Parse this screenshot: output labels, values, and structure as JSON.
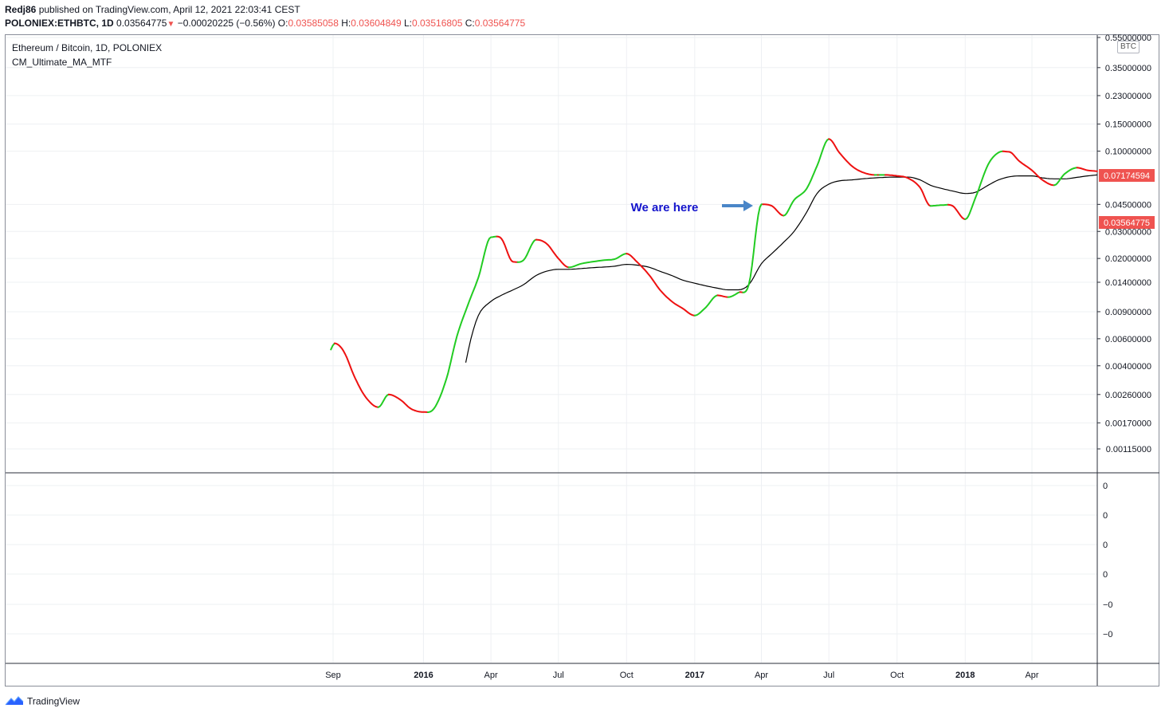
{
  "header": {
    "publisher": "Redj86",
    "published_text": "published on TradingView.com, April 12, 2021 22:03:41 CEST",
    "symbol": "POLONIEX:ETHBTC, 1D",
    "last": "0.03564775",
    "change_icon": "down-triangle-icon",
    "change": "−0.00020225 (−0.56%)",
    "o_label": "O:",
    "o_value": "0.03585058",
    "h_label": "H:",
    "h_value": "0.03604849",
    "l_label": "L:",
    "l_value": "0.03516805",
    "c_label": "C:",
    "c_value": "0.03564775"
  },
  "legend": {
    "series_title": "Ethereum / Bitcoin, 1D, POLONIEX",
    "indicator_title": "CM_Ultimate_MA_MTF"
  },
  "price_axis": {
    "unit": "BTC",
    "ticks": [
      "0.55000000",
      "0.35000000",
      "0.23000000",
      "0.15000000",
      "0.10000000",
      "0.04500000",
      "0.03000000",
      "0.02000000",
      "0.01400000",
      "0.00900000",
      "0.00600000",
      "0.00400000",
      "0.00260000",
      "0.00170000",
      "0.00115000"
    ],
    "badge_ma": "0.07174594",
    "badge_price": "0.03564775"
  },
  "indicator_axis": {
    "ticks": [
      "0",
      "0",
      "0",
      "0",
      "−0",
      "−0"
    ]
  },
  "time_axis": {
    "labels": [
      "Sep",
      "2016",
      "Apr",
      "Jul",
      "Oct",
      "2017",
      "Apr",
      "Jul",
      "Oct",
      "2018",
      "Apr"
    ],
    "bold": [
      false,
      true,
      false,
      false,
      false,
      true,
      false,
      false,
      false,
      true,
      false
    ]
  },
  "annotation": {
    "text": "We are here"
  },
  "footer": {
    "brand": "TradingView"
  },
  "colors": {
    "up": "#22cc22",
    "down": "#ee1111",
    "ma": "#000000",
    "badge": "#ef5350",
    "annotation_text": "#1414cc",
    "arrow": "#4a86c8"
  },
  "chart_data": {
    "type": "line",
    "title": "Ethereum / Bitcoin, 1D, POLONIEX",
    "y_scale": "log",
    "ylim": [
      0.00092,
      0.58
    ],
    "y_ticks": [
      0.55,
      0.35,
      0.23,
      0.15,
      0.1,
      0.045,
      0.03,
      0.02,
      0.014,
      0.009,
      0.006,
      0.004,
      0.0026,
      0.0017,
      0.00115
    ],
    "x_ticks": [
      "2015-09-01",
      "2016-01-01",
      "2016-04-01",
      "2016-07-01",
      "2016-10-01",
      "2017-01-01",
      "2017-04-01",
      "2017-07-01",
      "2017-10-01",
      "2018-01-01",
      "2018-04-01"
    ],
    "x_tick_labels": [
      "Sep",
      "2016",
      "Apr",
      "Jul",
      "Oct",
      "2017",
      "Apr",
      "Jul",
      "Oct",
      "2018",
      "Apr"
    ],
    "grid": true,
    "series": [
      {
        "name": "CM_Ultimate_MA_MTF",
        "role": "price-ma",
        "x": [
          "2015-08-29",
          "2015-09-03",
          "2015-09-15",
          "2015-10-01",
          "2015-10-15",
          "2015-11-01",
          "2015-11-15",
          "2015-12-01",
          "2015-12-15",
          "2016-01-01",
          "2016-01-15",
          "2016-02-01",
          "2016-02-15",
          "2016-03-01",
          "2016-03-15",
          "2016-04-01",
          "2016-04-15",
          "2016-05-01",
          "2016-05-15",
          "2016-06-01",
          "2016-06-15",
          "2016-07-01",
          "2016-07-15",
          "2016-08-01",
          "2016-08-15",
          "2016-09-01",
          "2016-09-15",
          "2016-10-01",
          "2016-10-15",
          "2016-11-01",
          "2016-11-15",
          "2016-12-01",
          "2016-12-15",
          "2017-01-01",
          "2017-01-15",
          "2017-02-01",
          "2017-02-15",
          "2017-03-01",
          "2017-03-15",
          "2017-04-01",
          "2017-04-15",
          "2017-05-01",
          "2017-05-15",
          "2017-06-01",
          "2017-06-15",
          "2017-07-01",
          "2017-07-15",
          "2017-08-01",
          "2017-08-15",
          "2017-09-01",
          "2017-09-15",
          "2017-10-01",
          "2017-10-15",
          "2017-11-01",
          "2017-11-15",
          "2017-12-01",
          "2017-12-15",
          "2018-01-01",
          "2018-01-15",
          "2018-02-01",
          "2018-02-15",
          "2018-03-01",
          "2018-03-15",
          "2018-04-01",
          "2018-04-15",
          "2018-05-01",
          "2018-05-15",
          "2018-06-01",
          "2018-06-15",
          "2018-06-28"
        ],
        "values": [
          0.0051,
          0.0056,
          0.005,
          0.0033,
          0.0025,
          0.00215,
          0.0026,
          0.0024,
          0.0021,
          0.002,
          0.0021,
          0.0033,
          0.0062,
          0.01,
          0.015,
          0.0275,
          0.027,
          0.019,
          0.0195,
          0.0265,
          0.025,
          0.02,
          0.0175,
          0.0185,
          0.019,
          0.0195,
          0.0198,
          0.0215,
          0.019,
          0.0155,
          0.0125,
          0.0105,
          0.0095,
          0.0085,
          0.0095,
          0.0115,
          0.0112,
          0.012,
          0.0135,
          0.045,
          0.044,
          0.038,
          0.048,
          0.057,
          0.08,
          0.12,
          0.098,
          0.08,
          0.073,
          0.07,
          0.07,
          0.069,
          0.067,
          0.058,
          0.044,
          0.0445,
          0.044,
          0.036,
          0.05,
          0.082,
          0.098,
          0.099,
          0.086,
          0.075,
          0.065,
          0.06,
          0.071,
          0.078,
          0.075,
          0.074
        ]
      },
      {
        "name": "",
        "role": "ma",
        "x": [
          "2016-02-27",
          "2016-03-05",
          "2016-03-15",
          "2016-04-01",
          "2016-04-15",
          "2016-05-01",
          "2016-05-15",
          "2016-06-01",
          "2016-06-15",
          "2016-07-01",
          "2016-07-15",
          "2016-08-01",
          "2016-08-15",
          "2016-09-01",
          "2016-09-15",
          "2016-10-01",
          "2016-10-15",
          "2016-11-01",
          "2016-11-15",
          "2016-12-01",
          "2016-12-15",
          "2017-01-01",
          "2017-01-15",
          "2017-02-01",
          "2017-02-15",
          "2017-03-01",
          "2017-03-15",
          "2017-04-01",
          "2017-04-15",
          "2017-05-01",
          "2017-05-15",
          "2017-06-01",
          "2017-06-15",
          "2017-07-01",
          "2017-07-15",
          "2017-08-01",
          "2017-08-15",
          "2017-09-01",
          "2017-09-15",
          "2017-10-01",
          "2017-10-15",
          "2017-11-01",
          "2017-11-15",
          "2017-12-01",
          "2017-12-15",
          "2018-01-01",
          "2018-01-15",
          "2018-02-01",
          "2018-02-15",
          "2018-03-01",
          "2018-03-15",
          "2018-04-01",
          "2018-04-15",
          "2018-05-01",
          "2018-05-15",
          "2018-06-01",
          "2018-06-15",
          "2018-06-28"
        ],
        "values": [
          0.0042,
          0.006,
          0.0085,
          0.0105,
          0.0115,
          0.0125,
          0.0135,
          0.0155,
          0.0165,
          0.017,
          0.017,
          0.0172,
          0.0174,
          0.0176,
          0.0178,
          0.0183,
          0.0181,
          0.0175,
          0.0165,
          0.0155,
          0.0145,
          0.0138,
          0.0133,
          0.0128,
          0.0125,
          0.0125,
          0.0135,
          0.0185,
          0.0215,
          0.0255,
          0.03,
          0.04,
          0.053,
          0.061,
          0.064,
          0.065,
          0.066,
          0.067,
          0.0675,
          0.0678,
          0.0678,
          0.065,
          0.06,
          0.057,
          0.055,
          0.053,
          0.054,
          0.06,
          0.065,
          0.068,
          0.069,
          0.069,
          0.067,
          0.066,
          0.066,
          0.0675,
          0.069,
          0.07
        ]
      }
    ]
  }
}
